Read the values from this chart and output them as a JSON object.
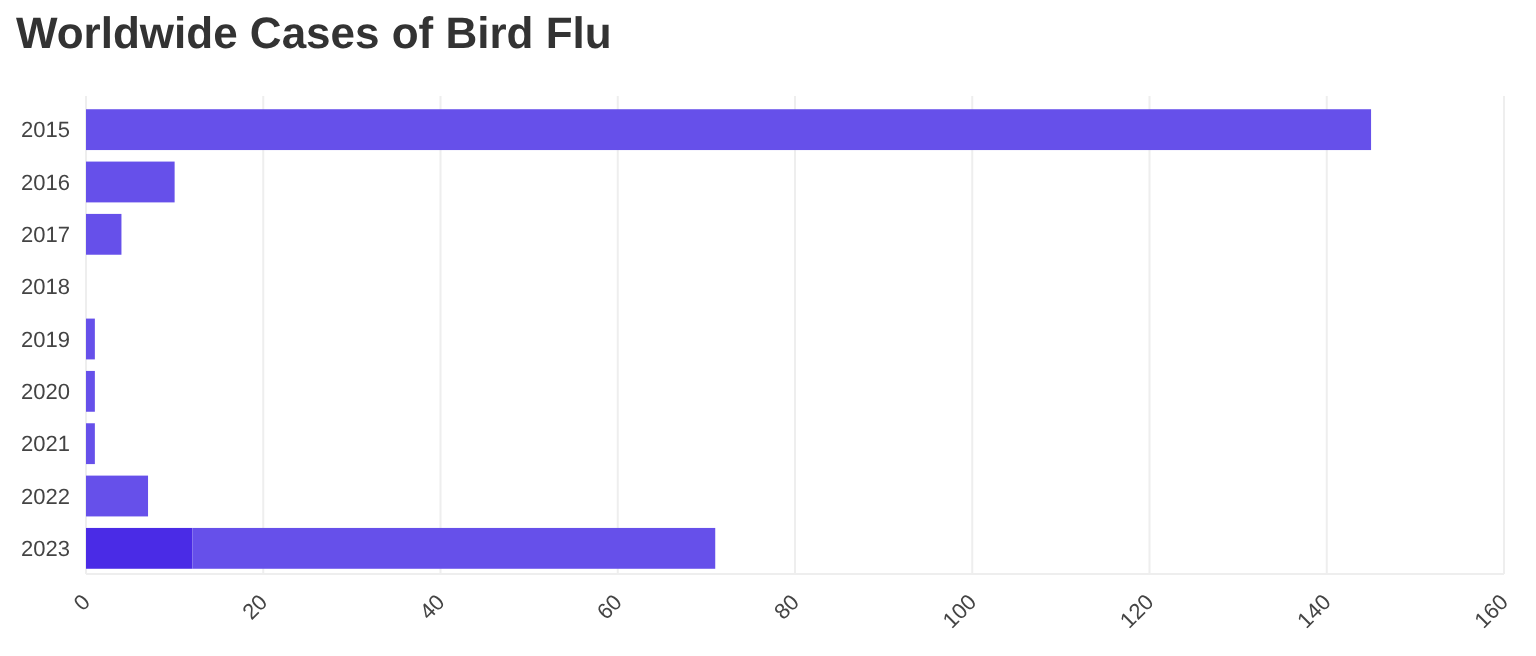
{
  "chart_data": {
    "type": "bar",
    "title": "Worldwide Cases of Bird Flu",
    "orientation": "horizontal",
    "stacked": true,
    "categories": [
      "2015",
      "2016",
      "2017",
      "2018",
      "2019",
      "2020",
      "2021",
      "2022",
      "2023"
    ],
    "series": [
      {
        "color": "#4a2be6",
        "values": [
          null,
          null,
          null,
          null,
          null,
          null,
          null,
          null,
          12
        ]
      },
      {
        "color": "#6650ea",
        "values": [
          145,
          10,
          4,
          0,
          1,
          1,
          1,
          7,
          59
        ]
      }
    ],
    "xlim": [
      0,
      160
    ],
    "xticks": [
      0,
      20,
      40,
      60,
      80,
      100,
      120,
      140,
      160
    ],
    "grid": "x"
  }
}
